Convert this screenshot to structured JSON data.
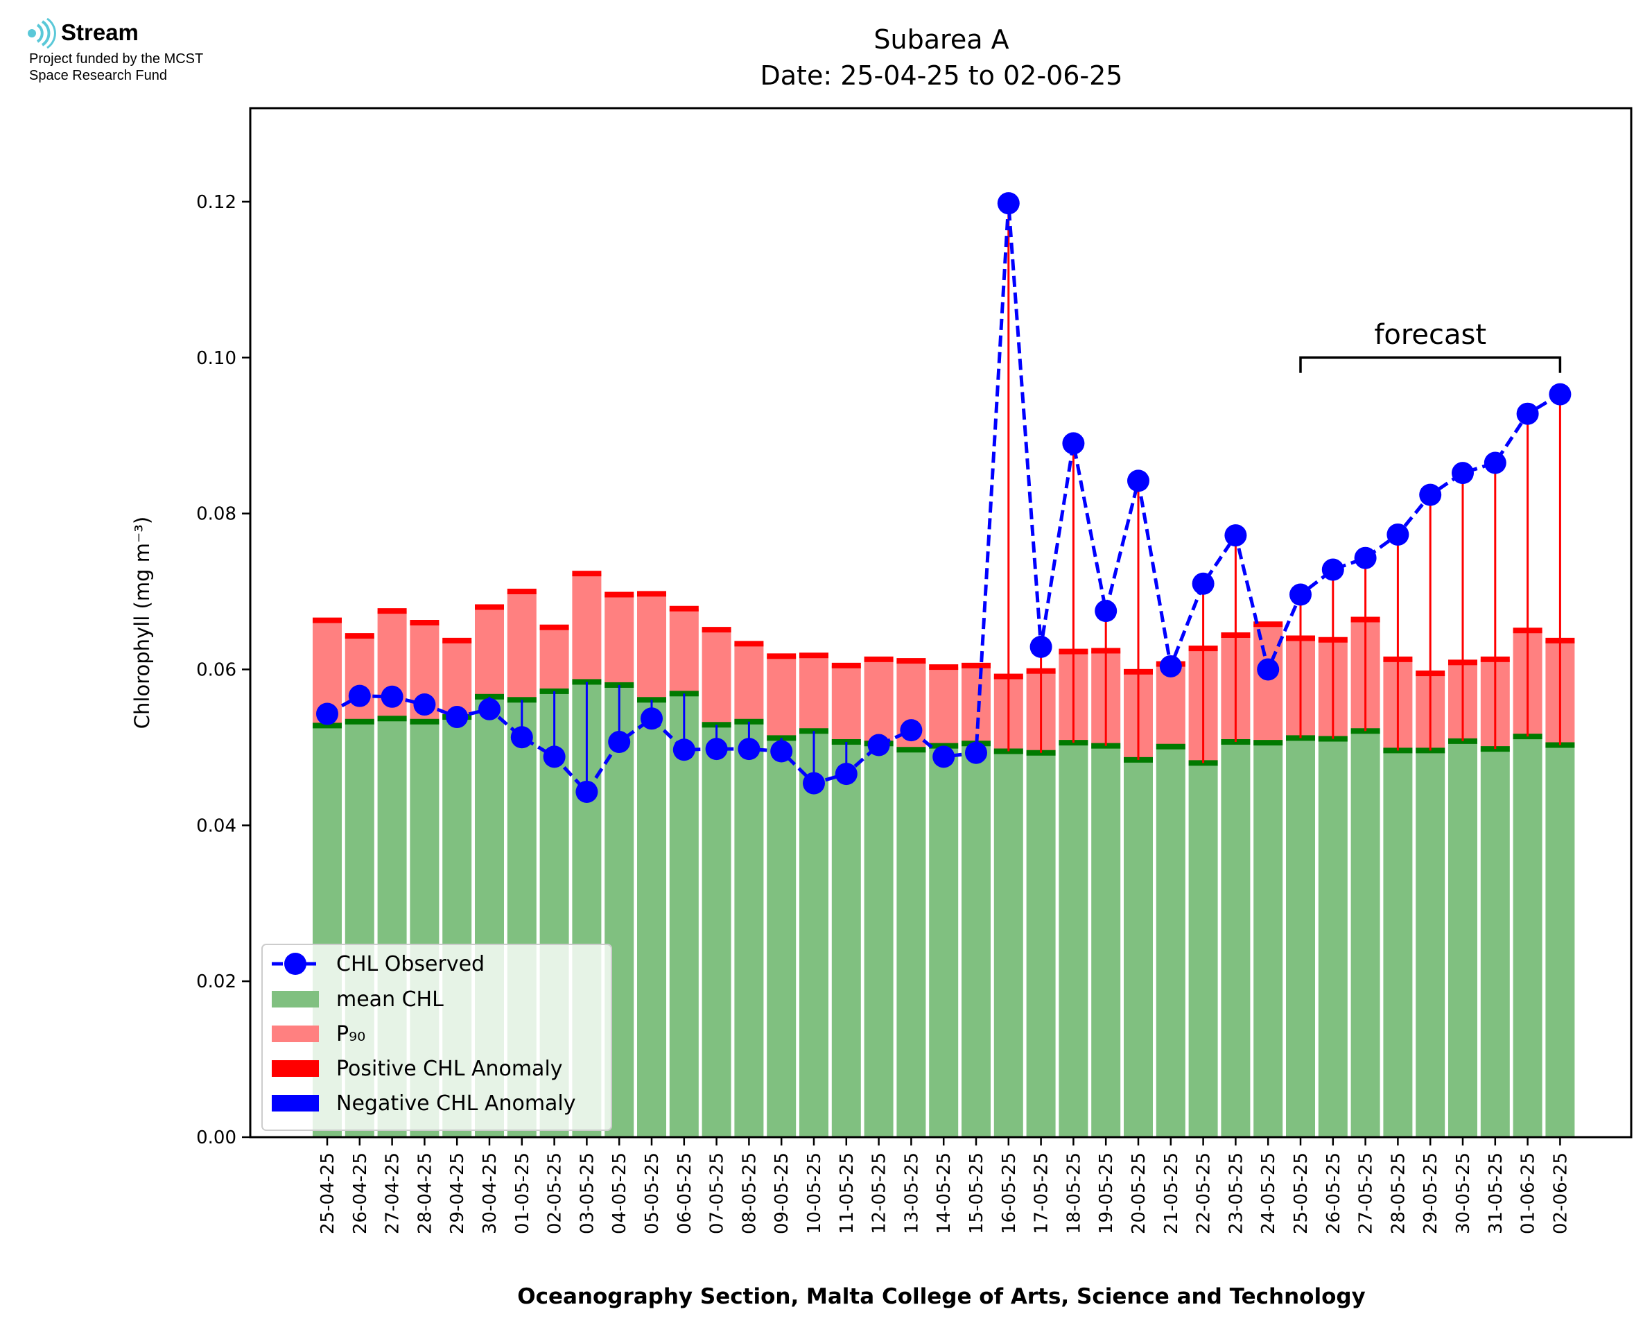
{
  "logo": {
    "name": "Stream",
    "line1": "Project funded by the MCST",
    "line2": "Space Research Fund",
    "color": "#5ac8d8"
  },
  "chart_data": {
    "type": "bar",
    "title": "Subarea A",
    "subtitle": "Date: 25-04-25 to 02-06-25",
    "xlabel": "Oceanography Section, Malta College of Arts, Science and Technology",
    "ylabel": "Chlorophyll (mg m⁻³)",
    "ylim": [
      0,
      0.132
    ],
    "yticks": [
      0.0,
      0.02,
      0.04,
      0.06,
      0.08,
      0.1,
      0.12
    ],
    "ytick_labels": [
      "0.00",
      "0.02",
      "0.04",
      "0.06",
      "0.08",
      "0.10",
      "0.12"
    ],
    "grid": false,
    "legend_position": "lower-left",
    "annotation": {
      "text": "forecast",
      "from": "25-05-25",
      "to": "02-06-25",
      "level": 0.1
    },
    "categories": [
      "25-04-25",
      "26-04-25",
      "27-04-25",
      "28-04-25",
      "29-04-25",
      "30-04-25",
      "01-05-25",
      "02-05-25",
      "03-05-25",
      "04-05-25",
      "05-05-25",
      "06-05-25",
      "07-05-25",
      "08-05-25",
      "09-05-25",
      "10-05-25",
      "11-05-25",
      "12-05-25",
      "13-05-25",
      "14-05-25",
      "15-05-25",
      "16-05-25",
      "17-05-25",
      "18-05-25",
      "19-05-25",
      "20-05-25",
      "21-05-25",
      "22-05-25",
      "23-05-25",
      "24-05-25",
      "25-05-25",
      "26-05-25",
      "27-05-25",
      "28-05-25",
      "29-05-25",
      "30-05-25",
      "31-05-25",
      "01-06-25",
      "02-06-25"
    ],
    "series": [
      {
        "name": "CHL Observed",
        "color": "#0000ff",
        "values": [
          0.0543,
          0.0566,
          0.0565,
          0.0555,
          0.0539,
          0.0549,
          0.0513,
          0.0488,
          0.0443,
          0.0507,
          0.0537,
          0.0497,
          0.0498,
          0.0498,
          0.0495,
          0.0454,
          0.0466,
          0.0503,
          0.0522,
          0.0488,
          0.0493,
          0.1198,
          0.0629,
          0.089,
          0.0675,
          0.0842,
          0.0604,
          0.071,
          0.0772,
          0.06,
          0.0696,
          0.0728,
          0.0743,
          0.0773,
          0.0824,
          0.0852,
          0.0865,
          0.0928,
          0.0953
        ]
      },
      {
        "name": "mean CHL",
        "color": "#80c080",
        "values": [
          0.0528,
          0.0533,
          0.0537,
          0.0533,
          0.0539,
          0.0565,
          0.0561,
          0.0572,
          0.0584,
          0.058,
          0.0561,
          0.0569,
          0.0529,
          0.0533,
          0.0512,
          0.0521,
          0.0507,
          0.0505,
          0.0497,
          0.0502,
          0.0505,
          0.0495,
          0.0493,
          0.0506,
          0.0502,
          0.0484,
          0.0501,
          0.048,
          0.0507,
          0.0506,
          0.0512,
          0.0511,
          0.0521,
          0.0496,
          0.0496,
          0.0508,
          0.0498,
          0.0514,
          0.0503
        ]
      },
      {
        "name": "P₉₀",
        "color": "#ff8080",
        "values": [
          0.0663,
          0.0643,
          0.0675,
          0.066,
          0.0637,
          0.068,
          0.07,
          0.0654,
          0.0723,
          0.0696,
          0.0697,
          0.0678,
          0.0651,
          0.0633,
          0.0617,
          0.0618,
          0.0605,
          0.0613,
          0.0611,
          0.0603,
          0.0605,
          0.0591,
          0.0598,
          0.0623,
          0.0624,
          0.0597,
          0.0607,
          0.0627,
          0.0644,
          0.0658,
          0.064,
          0.0638,
          0.0664,
          0.0613,
          0.0595,
          0.0609,
          0.0613,
          0.065,
          0.0637
        ]
      },
      {
        "name": "Positive CHL Anomaly",
        "color": "#ff0000"
      },
      {
        "name": "Negative CHL Anomaly",
        "color": "#0000ff"
      }
    ]
  }
}
